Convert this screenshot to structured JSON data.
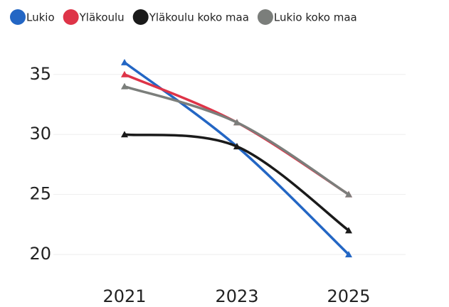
{
  "chart_data": {
    "type": "line",
    "categories": [
      "2021",
      "2023",
      "2025"
    ],
    "series": [
      {
        "name": "Lukio",
        "color": "#2366c4",
        "values": [
          36,
          29,
          20
        ]
      },
      {
        "name": "Yläkoulu",
        "color": "#de3448",
        "values": [
          35,
          31,
          25
        ]
      },
      {
        "name": "Yläkoulu koko maa",
        "color": "#1a1a1a",
        "values": [
          30,
          29,
          22
        ]
      },
      {
        "name": "Lukio koko maa",
        "color": "#7b7e7b",
        "values": [
          34,
          31,
          25
        ]
      }
    ],
    "ylim": [
      19,
      37
    ],
    "yticks": [
      20,
      25,
      30,
      35
    ],
    "grid": true,
    "legend": "top"
  }
}
